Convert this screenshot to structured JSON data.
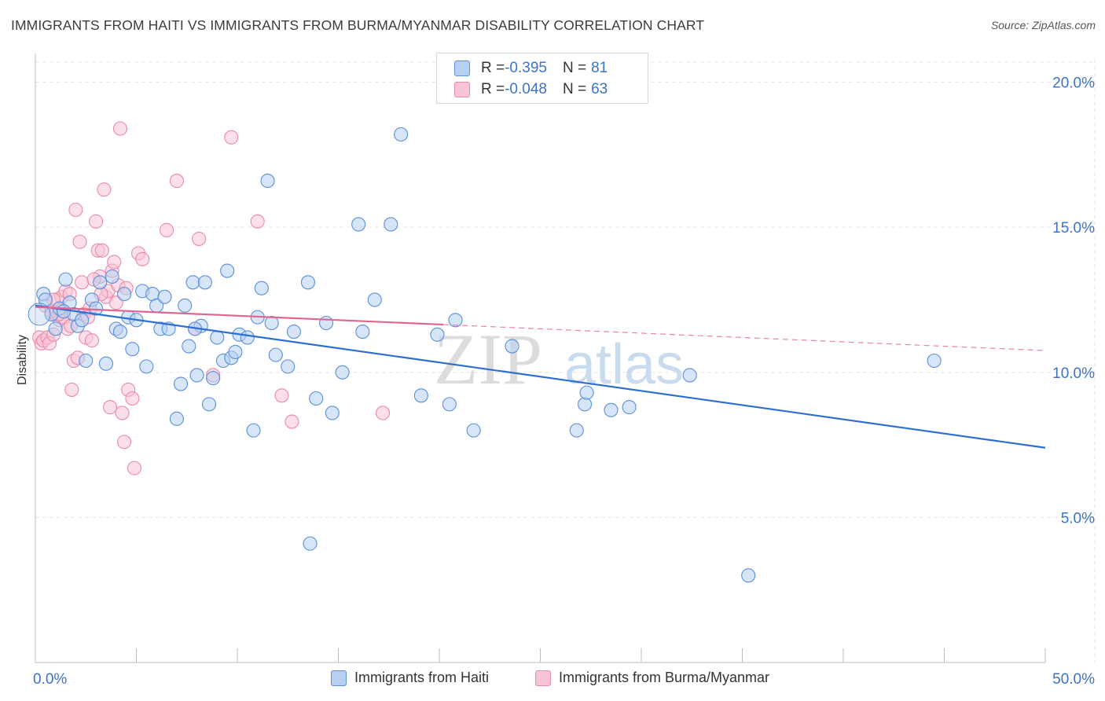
{
  "title": "IMMIGRANTS FROM HAITI VS IMMIGRANTS FROM BURMA/MYANMAR DISABILITY CORRELATION CHART",
  "source": "Source: ZipAtlas.com",
  "watermark": {
    "zip": "ZIP",
    "atlas": "atlas"
  },
  "stats": [
    {
      "r_label": "R = ",
      "r_value": "-0.395",
      "n_label": "N = ",
      "n_value": "81"
    },
    {
      "r_label": "R = ",
      "r_value": "-0.048",
      "n_label": "N = ",
      "n_value": "63"
    }
  ],
  "colors": {
    "haiti_fill": "#b7d0f2",
    "haiti_stroke": "#5b8fd9",
    "haiti_line": "#2c6fd1",
    "burma_fill": "#f9c4d6",
    "burma_stroke": "#e98aa9",
    "burma_line": "#e0668f",
    "tick_label": "#3a73c8",
    "grid": "#e6e6e6"
  },
  "chart_data": {
    "type": "scatter",
    "title": "IMMIGRANTS FROM HAITI VS IMMIGRANTS FROM BURMA/MYANMAR DISABILITY CORRELATION CHART",
    "xlabel": "",
    "ylabel": "Disability",
    "xlim": [
      0,
      50
    ],
    "ylim": [
      0,
      20.8
    ],
    "x_tick_labels": [
      "0.0%",
      "50.0%"
    ],
    "y_ticks": [
      5,
      10,
      15,
      20
    ],
    "y_tick_labels": [
      "5.0%",
      "10.0%",
      "15.0%",
      "20.0%"
    ],
    "grid": true,
    "legend_position": "bottom",
    "series": [
      {
        "name": "Immigrants from Haiti",
        "trend": {
          "x": [
            0,
            50
          ],
          "y": [
            12.3,
            7.4
          ],
          "dashed_from": null
        },
        "points": [
          [
            0.4,
            12.7
          ],
          [
            0.5,
            12.5
          ],
          [
            0.8,
            12.0
          ],
          [
            1.0,
            11.5
          ],
          [
            1.2,
            12.2
          ],
          [
            1.5,
            13.2
          ],
          [
            1.7,
            12.4
          ],
          [
            1.9,
            12.0
          ],
          [
            2.1,
            11.6
          ],
          [
            2.3,
            11.8
          ],
          [
            2.5,
            10.4
          ],
          [
            2.8,
            12.5
          ],
          [
            3.0,
            12.2
          ],
          [
            3.2,
            13.1
          ],
          [
            3.5,
            10.3
          ],
          [
            3.8,
            13.3
          ],
          [
            4.0,
            11.5
          ],
          [
            4.2,
            11.4
          ],
          [
            4.4,
            12.7
          ],
          [
            4.6,
            11.9
          ],
          [
            4.8,
            10.8
          ],
          [
            5.0,
            11.8
          ],
          [
            5.3,
            12.8
          ],
          [
            5.5,
            10.2
          ],
          [
            5.8,
            12.7
          ],
          [
            6.0,
            12.3
          ],
          [
            6.2,
            11.5
          ],
          [
            6.4,
            12.6
          ],
          [
            6.6,
            11.5
          ],
          [
            7.0,
            8.4
          ],
          [
            7.2,
            9.6
          ],
          [
            7.4,
            12.3
          ],
          [
            7.6,
            10.9
          ],
          [
            7.8,
            13.1
          ],
          [
            8.0,
            9.9
          ],
          [
            8.2,
            11.6
          ],
          [
            8.4,
            13.1
          ],
          [
            8.6,
            8.9
          ],
          [
            8.8,
            9.8
          ],
          [
            9.0,
            11.2
          ],
          [
            9.3,
            10.4
          ],
          [
            9.5,
            13.5
          ],
          [
            9.7,
            10.5
          ],
          [
            9.9,
            10.7
          ],
          [
            10.1,
            11.3
          ],
          [
            10.5,
            11.2
          ],
          [
            10.8,
            8.0
          ],
          [
            11.0,
            11.9
          ],
          [
            11.2,
            12.9
          ],
          [
            11.5,
            16.6
          ],
          [
            11.7,
            11.7
          ],
          [
            11.9,
            10.6
          ],
          [
            12.5,
            10.2
          ],
          [
            12.8,
            11.4
          ],
          [
            13.5,
            13.1
          ],
          [
            13.6,
            4.1
          ],
          [
            13.9,
            9.1
          ],
          [
            14.4,
            11.7
          ],
          [
            14.7,
            8.6
          ],
          [
            15.2,
            10.0
          ],
          [
            16.0,
            15.1
          ],
          [
            16.2,
            11.4
          ],
          [
            16.8,
            12.5
          ],
          [
            17.6,
            15.1
          ],
          [
            18.1,
            18.2
          ],
          [
            19.1,
            9.2
          ],
          [
            19.9,
            11.3
          ],
          [
            20.5,
            8.9
          ],
          [
            20.8,
            11.8
          ],
          [
            21.7,
            8.0
          ],
          [
            23.6,
            10.9
          ],
          [
            26.8,
            8.0
          ],
          [
            27.2,
            8.9
          ],
          [
            27.3,
            9.3
          ],
          [
            28.5,
            8.7
          ],
          [
            29.4,
            8.8
          ],
          [
            32.4,
            9.9
          ],
          [
            35.3,
            3.0
          ],
          [
            44.5,
            10.4
          ],
          [
            1.4,
            12.1
          ],
          [
            7.9,
            11.5
          ]
        ]
      },
      {
        "name": "Immigrants from Burma/Myanmar",
        "trend": {
          "x": [
            0,
            50
          ],
          "y": [
            12.25,
            10.75
          ],
          "dashed_from": 20.2
        },
        "points": [
          [
            0.2,
            11.2
          ],
          [
            0.3,
            11.0
          ],
          [
            0.4,
            11.1
          ],
          [
            0.5,
            12.3
          ],
          [
            0.6,
            11.2
          ],
          [
            0.7,
            11.0
          ],
          [
            0.8,
            12.1
          ],
          [
            0.9,
            11.3
          ],
          [
            1.0,
            12.0
          ],
          [
            1.1,
            12.5
          ],
          [
            1.2,
            11.8
          ],
          [
            1.3,
            12.6
          ],
          [
            1.4,
            11.9
          ],
          [
            1.5,
            12.8
          ],
          [
            1.6,
            11.5
          ],
          [
            1.7,
            12.7
          ],
          [
            1.8,
            9.4
          ],
          [
            1.9,
            10.4
          ],
          [
            2.0,
            15.6
          ],
          [
            2.1,
            10.5
          ],
          [
            2.2,
            14.5
          ],
          [
            2.3,
            13.1
          ],
          [
            2.4,
            12.0
          ],
          [
            2.5,
            11.2
          ],
          [
            2.7,
            12.2
          ],
          [
            2.8,
            11.1
          ],
          [
            3.0,
            15.2
          ],
          [
            3.1,
            14.2
          ],
          [
            3.2,
            13.3
          ],
          [
            3.3,
            14.2
          ],
          [
            3.4,
            16.3
          ],
          [
            3.5,
            12.6
          ],
          [
            3.6,
            12.8
          ],
          [
            3.7,
            8.8
          ],
          [
            3.8,
            13.5
          ],
          [
            3.9,
            13.8
          ],
          [
            4.0,
            12.4
          ],
          [
            4.1,
            13.0
          ],
          [
            4.3,
            8.6
          ],
          [
            4.4,
            7.6
          ],
          [
            4.5,
            12.9
          ],
          [
            4.6,
            9.4
          ],
          [
            4.8,
            9.1
          ],
          [
            4.9,
            6.7
          ],
          [
            5.1,
            14.1
          ],
          [
            5.3,
            13.9
          ],
          [
            4.2,
            18.4
          ],
          [
            6.5,
            14.9
          ],
          [
            7.0,
            16.6
          ],
          [
            7.9,
            11.5
          ],
          [
            8.1,
            14.6
          ],
          [
            8.8,
            9.9
          ],
          [
            9.7,
            18.1
          ],
          [
            11.0,
            15.2
          ],
          [
            12.2,
            9.2
          ],
          [
            12.7,
            8.3
          ],
          [
            17.2,
            8.6
          ],
          [
            1.15,
            12.0
          ],
          [
            2.6,
            11.9
          ],
          [
            3.25,
            12.7
          ],
          [
            1.75,
            11.6
          ],
          [
            0.9,
            12.5
          ],
          [
            2.9,
            13.2
          ]
        ]
      }
    ]
  },
  "legend": {
    "items": [
      {
        "label": "Immigrants from Haiti"
      },
      {
        "label": "Immigrants from Burma/Myanmar"
      }
    ]
  }
}
